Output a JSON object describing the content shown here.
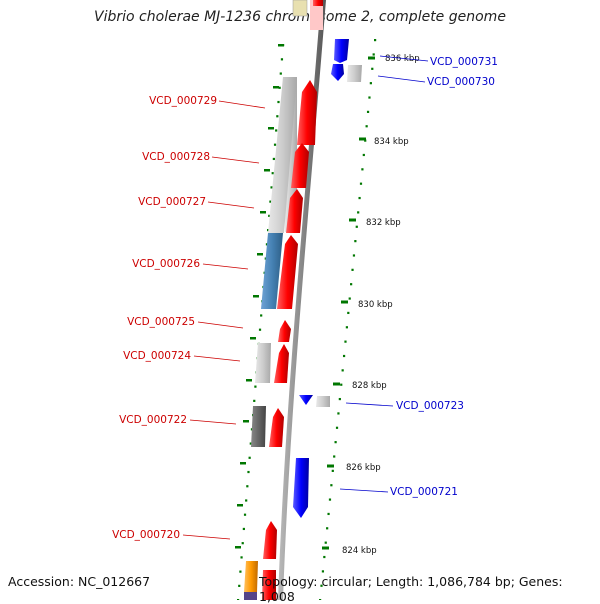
{
  "title": "Vibrio cholerae MJ-1236 chromosome 2, complete genome",
  "footer": {
    "accession": "Accession: NC_012667",
    "topology": "Topology: circular; Length: 1,086,784 bp; Genes: 1,008"
  },
  "colors": {
    "forward_cds": "#ff0000",
    "reverse_cds": "#0000ff",
    "gray_cds": "#c8c8c8",
    "dark_gray_cds": "#666666",
    "steelblue_cds": "#4682b4",
    "orange_cds": "#ff9900",
    "tick": "#007700",
    "forward_label": "#cc0000",
    "reverse_label": "#0000cc"
  },
  "ticks": [
    "836 kbp",
    "834 kbp",
    "832 kbp",
    "830 kbp",
    "828 kbp",
    "826 kbp",
    "824 kbp"
  ],
  "forward_labels": [
    "VCD_000729",
    "VCD_000728",
    "VCD_000727",
    "VCD_000726",
    "VCD_000725",
    "VCD_000724",
    "VCD_000722",
    "VCD_000720"
  ],
  "reverse_labels": [
    "VCD_000731",
    "VCD_000730",
    "VCD_000723",
    "VCD_000721"
  ]
}
